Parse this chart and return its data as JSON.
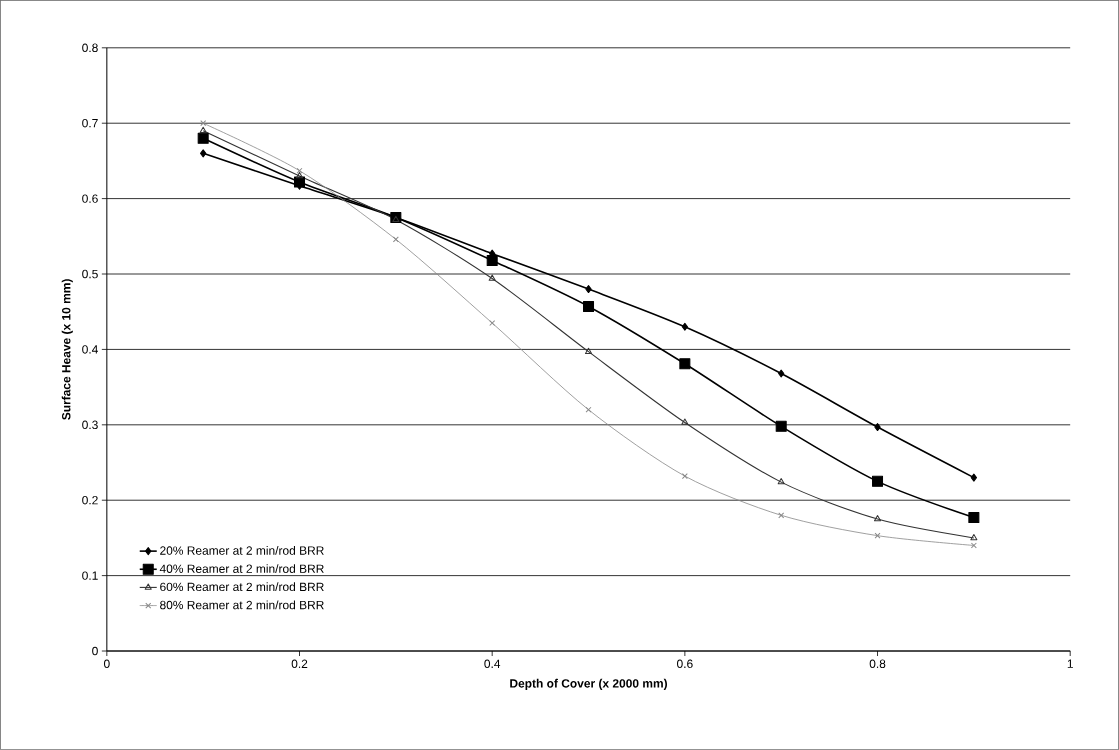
{
  "chart_data": {
    "type": "line",
    "xlabel": "Depth of Cover (x 2000 mm)",
    "ylabel": "Surface Heave (x 10 mm)",
    "x": [
      0.1,
      0.2,
      0.3,
      0.4,
      0.5,
      0.6,
      0.7,
      0.8,
      0.9
    ],
    "series": [
      {
        "name": "20% Reamer at 2 min/rod BRR",
        "color": "#000000",
        "marker": "diamond",
        "values": [
          0.66,
          0.617,
          0.575,
          0.527,
          0.48,
          0.43,
          0.368,
          0.297,
          0.23
        ]
      },
      {
        "name": "40% Reamer at 2 min/rod BRR",
        "color": "#000000",
        "marker": "square",
        "values": [
          0.68,
          0.622,
          0.575,
          0.518,
          0.457,
          0.381,
          0.298,
          0.225,
          0.177
        ]
      },
      {
        "name": "60% Reamer at 2 min/rod BRR",
        "color": "#333333",
        "marker": "triangle",
        "values": [
          0.69,
          0.63,
          0.572,
          0.494,
          0.397,
          0.303,
          0.224,
          0.175,
          0.15
        ]
      },
      {
        "name": "80% Reamer at 2 min/rod BRR",
        "color": "#888888",
        "marker": "cross",
        "values": [
          0.7,
          0.637,
          0.546,
          0.435,
          0.32,
          0.232,
          0.18,
          0.153,
          0.14
        ]
      }
    ],
    "xlim": [
      0,
      1
    ],
    "xticks": [
      0,
      0.2,
      0.4,
      0.6,
      0.8,
      1
    ],
    "ylim": [
      0,
      0.8
    ],
    "yticks": [
      0,
      0.1,
      0.2,
      0.3,
      0.4,
      0.5,
      0.6,
      0.7,
      0.8
    ],
    "grid": "y",
    "legend": "bottom left"
  }
}
